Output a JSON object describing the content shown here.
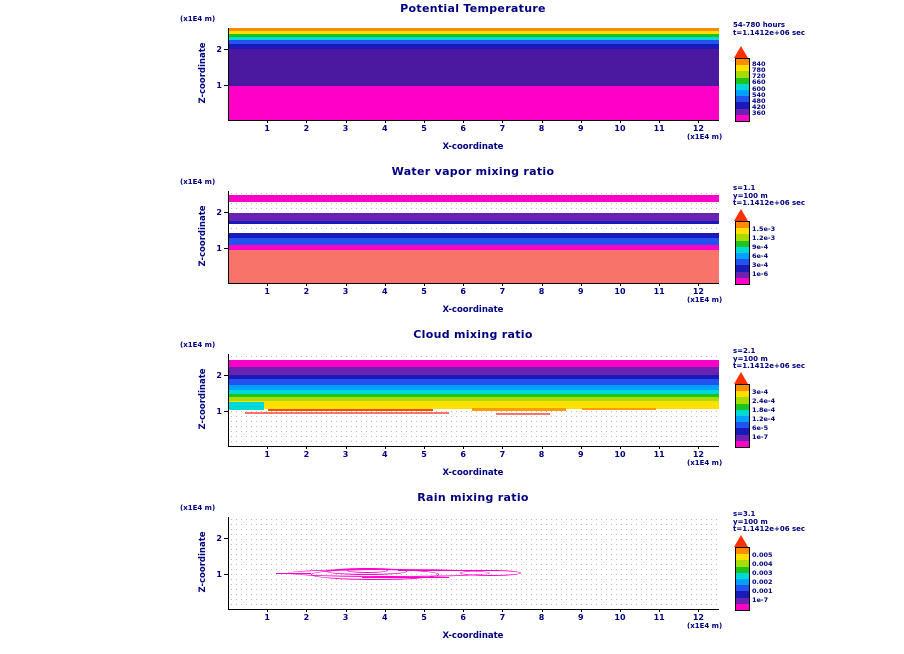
{
  "figure": {
    "background": "#FFFFFF",
    "text_color": "#000080"
  },
  "chart_data": [
    {
      "type": "filled-contour",
      "title": "Potential Temperature",
      "xlabel": "X-coordinate",
      "x_unit": "(x1E4 m)",
      "ylabel": "Z-coordinate",
      "y_unit": "(x1E4 m)",
      "xlim": [
        0,
        12.5
      ],
      "ylim": [
        0,
        2.6
      ],
      "x_ticks": [
        "1",
        "2",
        "3",
        "4",
        "5",
        "6",
        "7",
        "8",
        "9",
        "10",
        "11",
        "12"
      ],
      "y_ticks": [
        "1",
        "2"
      ],
      "grid_dots": true,
      "annotation": [
        "54-780 hours",
        "t=1.1412e+06 sec"
      ],
      "colorbar": {
        "labels": [
          "840",
          "780",
          "720",
          "660",
          "600",
          "540",
          "480",
          "420",
          "360"
        ],
        "colors": [
          "#FF8C00",
          "#FFE000",
          "#A8DC00",
          "#1EC41E",
          "#00D8D8",
          "#00A0FF",
          "#2353EE",
          "#1A1AB8",
          "#6A22B0",
          "#FF00C8"
        ],
        "arrow_color": "#FF3000"
      },
      "bands": [
        {
          "color": "#FF00C8",
          "z0": 0,
          "z1": 0.95
        },
        {
          "color": "#4B18A0",
          "z0": 0.95,
          "z1": 2.02
        },
        {
          "color": "#1A1AB8",
          "z0": 2.02,
          "z1": 2.14
        },
        {
          "color": "#2353EE",
          "z0": 2.14,
          "z1": 2.26
        },
        {
          "color": "#00D8D8",
          "z0": 2.26,
          "z1": 2.36
        },
        {
          "color": "#1EC41E",
          "z0": 2.36,
          "z1": 2.44
        },
        {
          "color": "#FFE000",
          "z0": 2.44,
          "z1": 2.52
        },
        {
          "color": "#FF8C00",
          "z0": 2.52,
          "z1": 2.6
        }
      ],
      "streaks": [],
      "scribbles": [],
      "scribble_color": "#FF00C8"
    },
    {
      "type": "filled-contour",
      "title": "Water vapor mixing ratio",
      "xlabel": "X-coordinate",
      "x_unit": "(x1E4 m)",
      "ylabel": "Z-coordinate",
      "y_unit": "(x1E4 m)",
      "xlim": [
        0,
        12.5
      ],
      "ylim": [
        0,
        2.6
      ],
      "x_ticks": [
        "1",
        "2",
        "3",
        "4",
        "5",
        "6",
        "7",
        "8",
        "9",
        "10",
        "11",
        "12"
      ],
      "y_ticks": [
        "1",
        "2"
      ],
      "grid_dots": true,
      "annotation": [
        "s=1.1",
        "y=100 m",
        "t=1.1412e+06 sec"
      ],
      "colorbar": {
        "labels": [
          "1.5e-3",
          "1.2e-3",
          "9e-4",
          "6e-4",
          "3e-4",
          "1e-6"
        ],
        "colors": [
          "#FF8C00",
          "#FFE000",
          "#A8DC00",
          "#1EC41E",
          "#00D8D8",
          "#00A0FF",
          "#2353EE",
          "#1A1AB8",
          "#6A22B0",
          "#FF00C8"
        ],
        "arrow_color": "#FF3000"
      },
      "bands": [
        {
          "color": "#F8736A",
          "z0": 0,
          "z1": 0.92
        },
        {
          "color": "#FF00C8",
          "z0": 0.92,
          "z1": 1.08
        },
        {
          "color": "#2353EE",
          "z0": 1.08,
          "z1": 1.26
        },
        {
          "color": "#1A1AB8",
          "z0": 1.26,
          "z1": 1.4
        },
        {
          "color": "#1A1AB8",
          "z0": 1.66,
          "z1": 1.74
        },
        {
          "color": "#6A22B0",
          "z0": 1.74,
          "z1": 1.98
        },
        {
          "color": "#FF00C8",
          "z0": 2.28,
          "z1": 2.48
        }
      ],
      "streaks": [],
      "scribbles": [],
      "scribble_color": "#FF00C8"
    },
    {
      "type": "filled-contour",
      "title": "Cloud mixing ratio",
      "xlabel": "X-coordinate",
      "x_unit": "(x1E4 m)",
      "ylabel": "Z-coordinate",
      "y_unit": "(x1E4 m)",
      "xlim": [
        0,
        12.5
      ],
      "ylim": [
        0,
        2.6
      ],
      "x_ticks": [
        "1",
        "2",
        "3",
        "4",
        "5",
        "6",
        "7",
        "8",
        "9",
        "10",
        "11",
        "12"
      ],
      "y_ticks": [
        "1",
        "2"
      ],
      "grid_dots": true,
      "annotation": [
        "s=2.1",
        "y=100 m",
        "t=1.1412e+06 sec"
      ],
      "colorbar": {
        "labels": [
          "3e-4",
          "2.4e-4",
          "1.8e-4",
          "1.2e-4",
          "6e-5",
          "1e-7"
        ],
        "colors": [
          "#FF8C00",
          "#FFE000",
          "#A8DC00",
          "#1EC41E",
          "#00D8D8",
          "#00A0FF",
          "#2353EE",
          "#1A1AB8",
          "#6A22B0",
          "#FF00C8"
        ],
        "arrow_color": "#FF3000"
      },
      "bands": [
        {
          "color": "#FFE000",
          "z0": 1.06,
          "z1": 1.28
        },
        {
          "color": "#A8DC00",
          "z0": 1.28,
          "z1": 1.38
        },
        {
          "color": "#1EC41E",
          "z0": 1.38,
          "z1": 1.48
        },
        {
          "color": "#00D8D8",
          "z0": 1.48,
          "z1": 1.58
        },
        {
          "color": "#00A0FF",
          "z0": 1.58,
          "z1": 1.72
        },
        {
          "color": "#2353EE",
          "z0": 1.72,
          "z1": 1.88
        },
        {
          "color": "#1A1AB8",
          "z0": 1.88,
          "z1": 2.02
        },
        {
          "color": "#6A22B0",
          "z0": 2.02,
          "z1": 2.22
        },
        {
          "color": "#FF00C8",
          "z0": 2.22,
          "z1": 2.44
        }
      ],
      "streaks": [
        {
          "color": "#F8736A",
          "x0": 0.4,
          "x1": 5.6,
          "z": 0.94,
          "h": 2
        },
        {
          "color": "#FF4E00",
          "x0": 1.0,
          "x1": 5.2,
          "z": 1.02,
          "h": 2
        },
        {
          "color": "#FF9C00",
          "x0": 6.2,
          "x1": 8.6,
          "z": 1.03,
          "h": 3
        },
        {
          "color": "#F8736A",
          "x0": 6.8,
          "x1": 8.2,
          "z": 0.9,
          "h": 2
        },
        {
          "color": "#FF9C00",
          "x0": 9.0,
          "x1": 10.9,
          "z": 1.06,
          "h": 2
        },
        {
          "color": "#00D8D8",
          "x0": 0.0,
          "x1": 0.9,
          "z": 1.14,
          "h": 8
        }
      ],
      "scribbles": [],
      "scribble_color": "#FF00C8"
    },
    {
      "type": "contour-lines",
      "title": "Rain mixing ratio",
      "xlabel": "X-coordinate",
      "x_unit": "(x1E4 m)",
      "ylabel": "Z-coordinate",
      "y_unit": "(x1E4 m)",
      "xlim": [
        0,
        12.5
      ],
      "ylim": [
        0,
        2.6
      ],
      "x_ticks": [
        "1",
        "2",
        "3",
        "4",
        "5",
        "6",
        "7",
        "8",
        "9",
        "10",
        "11",
        "12"
      ],
      "y_ticks": [
        "1",
        "2"
      ],
      "grid_dots": true,
      "annotation": [
        "s=3.1",
        "y=100 m",
        "t=1.1412e+06 sec"
      ],
      "colorbar": {
        "labels": [
          "0.005",
          "0.004",
          "0.003",
          "0.002",
          "0.001",
          "1e-7"
        ],
        "colors": [
          "#FF8C00",
          "#FFE000",
          "#A8DC00",
          "#1EC41E",
          "#00D8D8",
          "#00A0FF",
          "#2353EE",
          "#1A1AB8",
          "#6A22B0",
          "#FF00C8"
        ],
        "arrow_color": "#FF3000"
      },
      "bands": [],
      "streaks": [],
      "scribble_color": "#FF00C8",
      "scribbles": [
        {
          "shape": "outline",
          "x0": 1.5,
          "x1": 6.6,
          "z": 0.98,
          "h": 6
        },
        {
          "shape": "outline",
          "x0": 2.1,
          "x1": 5.3,
          "z": 0.96,
          "h": 9
        },
        {
          "shape": "outline",
          "x0": 2.5,
          "x1": 4.5,
          "z": 1.02,
          "h": 5
        },
        {
          "shape": "outline",
          "x0": 3.0,
          "x1": 4.0,
          "z": 1.05,
          "h": 3
        },
        {
          "shape": "outline",
          "x0": 5.9,
          "x1": 7.4,
          "z": 1.0,
          "h": 4
        },
        {
          "shape": "line",
          "x0": 1.2,
          "x1": 2.1,
          "z": 1.0,
          "h": 1
        },
        {
          "shape": "line",
          "x0": 4.3,
          "x1": 6.9,
          "z": 1.08,
          "h": 1
        },
        {
          "shape": "line",
          "x0": 3.4,
          "x1": 5.6,
          "z": 0.9,
          "h": 1
        }
      ]
    }
  ]
}
